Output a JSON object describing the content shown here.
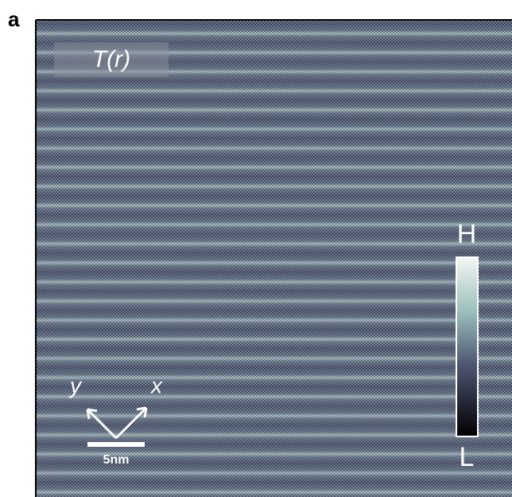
{
  "panel": {
    "label": "a",
    "title": "T(r)",
    "colorbar": {
      "high": "H",
      "low": "L"
    },
    "axes": {
      "y": "y",
      "x": "x"
    },
    "scale_bar": "5nm"
  }
}
